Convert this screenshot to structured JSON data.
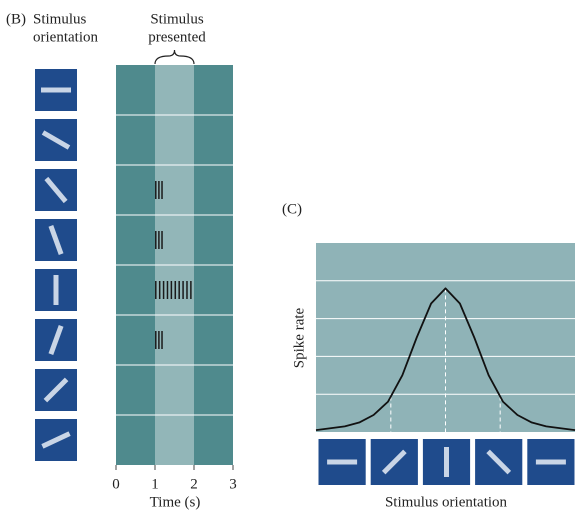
{
  "chart_data": [
    {
      "type": "raster",
      "panel": "(B)",
      "row_title": [
        "Stimulus",
        "orientation"
      ],
      "stimulus_title": [
        "Stimulus",
        "presented"
      ],
      "stimulus_window": [
        1,
        2
      ],
      "orientations": [
        0,
        30,
        50,
        70,
        90,
        110,
        135,
        155
      ],
      "spikes": [
        [],
        [],
        [
          1.02,
          1.1,
          1.18
        ],
        [
          1.02,
          1.1,
          1.18
        ],
        [
          1.02,
          1.12,
          1.22,
          1.32,
          1.42,
          1.52,
          1.62,
          1.72,
          1.82,
          1.92
        ],
        [
          1.02,
          1.1,
          1.18
        ],
        [],
        []
      ],
      "xlabel": "Time (s)",
      "xlim": [
        0,
        3
      ],
      "xticks": [
        0,
        1,
        2,
        3
      ],
      "background_color": "#4f8a8d",
      "stimulus_color": "#92b6b8",
      "spike_color": "#1a1a1a",
      "icon_color": "#1f4b8c",
      "bar_color": "#c9d5e6"
    },
    {
      "type": "line",
      "panel": "(C)",
      "ylabel": "Spike rate",
      "xlabel": "Stimulus orientation",
      "x": [
        0,
        10,
        20,
        30,
        40,
        50,
        60,
        70,
        80,
        90,
        100,
        110,
        120,
        130,
        140,
        150,
        160,
        170,
        180
      ],
      "values": [
        0.05,
        0.1,
        0.15,
        0.25,
        0.45,
        0.8,
        1.5,
        2.5,
        3.4,
        3.8,
        3.4,
        2.5,
        1.5,
        0.8,
        0.45,
        0.25,
        0.15,
        0.1,
        0.05
      ],
      "xlim": [
        0,
        180
      ],
      "ylim": [
        0,
        5
      ],
      "grid_lines": [
        1,
        2,
        3,
        4
      ],
      "reference_x": [
        52,
        90,
        128
      ],
      "icon_orientations": [
        0,
        135,
        90,
        45,
        0
      ],
      "background_color": "#8fb3b7",
      "line_color": "#111111",
      "icon_color": "#1f4b8c",
      "bar_color": "#c9d5e6"
    }
  ]
}
